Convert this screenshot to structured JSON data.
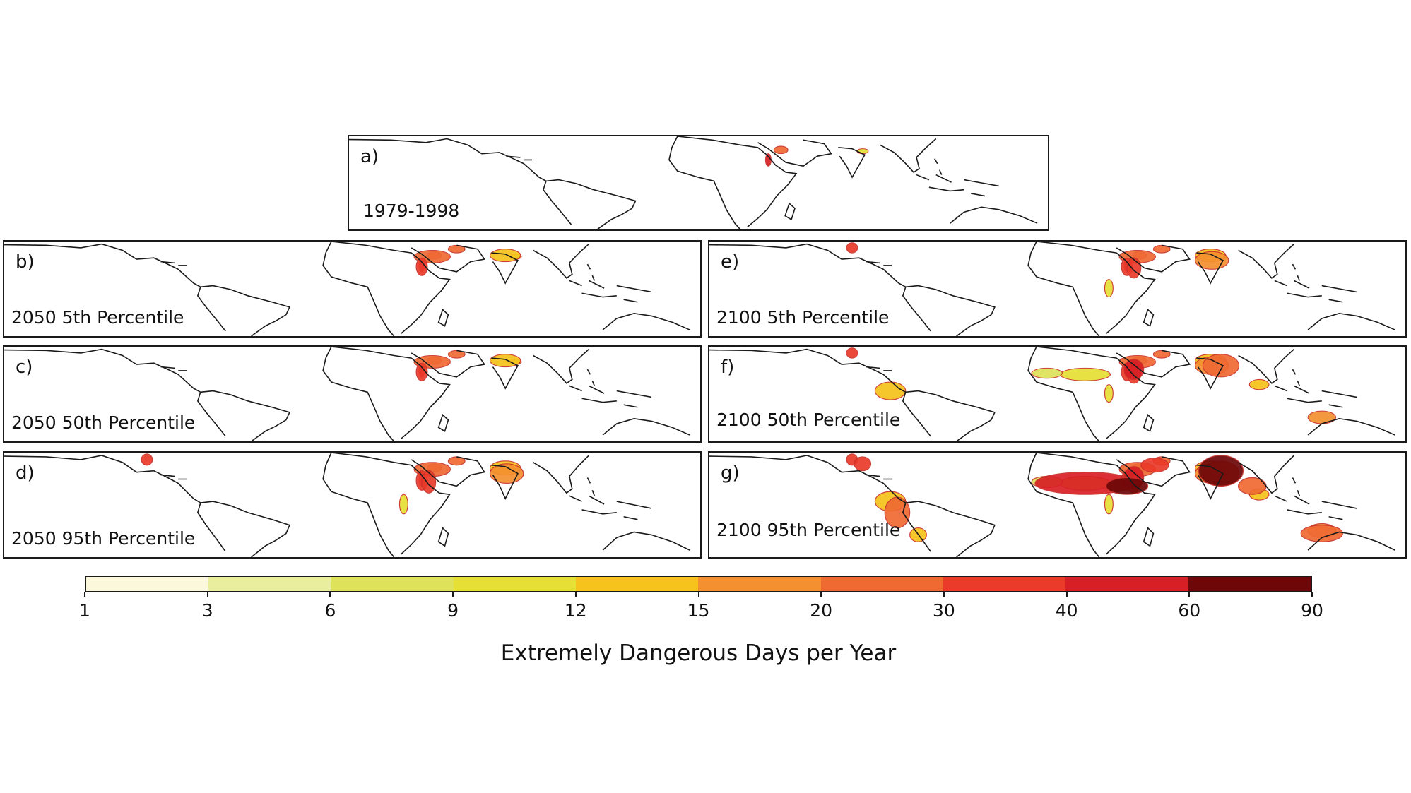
{
  "panels": [
    {
      "id": "a",
      "label": "a)",
      "period": "1979-1998",
      "intensity": 0
    },
    {
      "id": "b",
      "label": "b)",
      "period": "2050 5th Percentile",
      "intensity": 1
    },
    {
      "id": "c",
      "label": "c)",
      "period": "2050 50th Percentile",
      "intensity": 1
    },
    {
      "id": "d",
      "label": "d)",
      "period": "2050 95th Percentile",
      "intensity": 2
    },
    {
      "id": "e",
      "label": "e)",
      "period": "2100 5th Percentile",
      "intensity": 2
    },
    {
      "id": "f",
      "label": "f)",
      "period": "2100 50th Percentile",
      "intensity": 3
    },
    {
      "id": "g",
      "label": "g)",
      "period": "2100 95th Percentile",
      "intensity": 4
    }
  ],
  "colorbar": {
    "title": "Extremely Dangerous Days per Year",
    "ticks": [
      "1",
      "3",
      "6",
      "9",
      "12",
      "15",
      "20",
      "30",
      "40",
      "60",
      "90"
    ],
    "colors": [
      "#fbf8dc",
      "#e9ee9f",
      "#dee15a",
      "#e6df35",
      "#f6c21c",
      "#f49030",
      "#ef6a33",
      "#ea3a2a",
      "#d81f25",
      "#6d0708"
    ]
  }
}
